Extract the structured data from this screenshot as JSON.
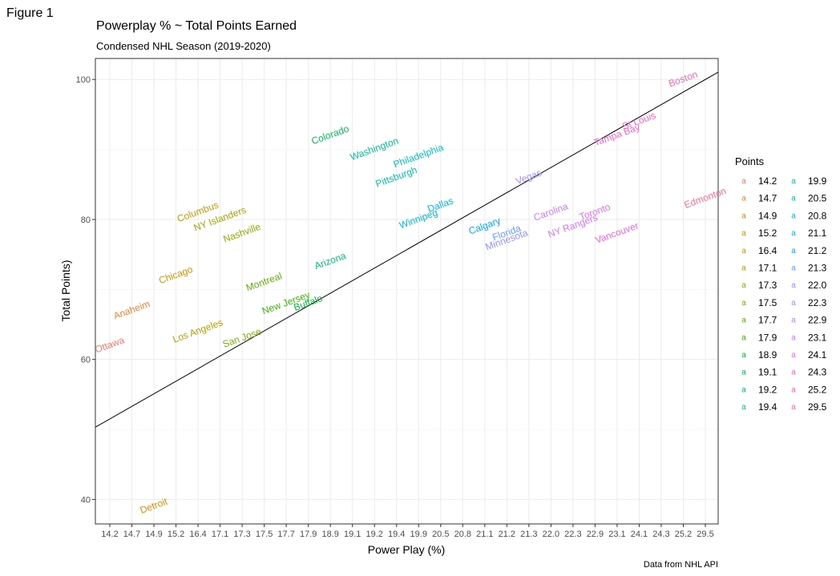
{
  "figure_label": "Figure 1",
  "caption": "Data from NHL API",
  "chart_data": {
    "type": "scatter",
    "title": "Powerplay % ~ Total Points Earned",
    "subtitle": "Condensed NHL Season (2019-2020)",
    "xlabel": "Power Play (%)",
    "ylabel": "Total Points)",
    "x_categories": [
      "14.2",
      "14.7",
      "14.9",
      "15.2",
      "16.4",
      "17.1",
      "17.3",
      "17.5",
      "17.7",
      "17.9",
      "18.9",
      "19.1",
      "19.2",
      "19.4",
      "19.9",
      "20.5",
      "20.8",
      "21.1",
      "21.2",
      "21.3",
      "22.0",
      "22.3",
      "22.9",
      "23.1",
      "24.1",
      "24.3",
      "25.2",
      "29.5"
    ],
    "y_ticks": [
      40,
      60,
      80,
      100
    ],
    "ylim": [
      36.5,
      103
    ],
    "grid": true,
    "legend": {
      "title": "Points",
      "position": "right",
      "key_glyph": "a"
    },
    "trend_line": {
      "y_at_first_category": 51.5,
      "y_at_last_category": 100
    },
    "points": [
      {
        "team": "Ottawa",
        "pp": "14.2",
        "pts": 62,
        "color": "#F8766D"
      },
      {
        "team": "Anaheim",
        "pp": "14.7",
        "pts": 67,
        "color": "#EB8335"
      },
      {
        "team": "Detroit",
        "pp": "14.9",
        "pts": 39,
        "color": "#DF8D00"
      },
      {
        "team": "Chicago",
        "pp": "15.2",
        "pts": 72,
        "color": "#D39200"
      },
      {
        "team": "Columbus",
        "pp": "16.4",
        "pts": 81,
        "color": "#C49A00"
      },
      {
        "team": "Los Angeles",
        "pp": "16.4",
        "pts": 64,
        "color": "#B79F00"
      },
      {
        "team": "NY Islanders",
        "pp": "17.1",
        "pts": 80,
        "color": "#A3A500"
      },
      {
        "team": "Nashville",
        "pp": "17.3",
        "pts": 78,
        "color": "#93AA00"
      },
      {
        "team": "San Jose",
        "pp": "17.3",
        "pts": 63,
        "color": "#7CAE00"
      },
      {
        "team": "Montreal",
        "pp": "17.5",
        "pts": 71,
        "color": "#5EB300"
      },
      {
        "team": "New Jersey",
        "pp": "17.7",
        "pts": 68,
        "color": "#39B600"
      },
      {
        "team": "Buffalo",
        "pp": "17.9",
        "pts": 68,
        "color": "#00BA38"
      },
      {
        "team": "Colorado",
        "pp": "18.9",
        "pts": 92,
        "color": "#00BC59"
      },
      {
        "team": "Arizona",
        "pp": "18.9",
        "pts": 74,
        "color": "#00BF7D"
      },
      {
        "team": "Washington",
        "pp": "19.2",
        "pts": 90,
        "color": "#00C19A"
      },
      {
        "team": "Pittsburgh",
        "pp": "19.4",
        "pts": 86,
        "color": "#00C0B8"
      },
      {
        "team": "Philadelphia",
        "pp": "19.9",
        "pts": 89,
        "color": "#00BFC4"
      },
      {
        "team": "Winnipeg",
        "pp": "19.9",
        "pts": 80,
        "color": "#00BCD8"
      },
      {
        "team": "Dallas",
        "pp": "20.5",
        "pts": 82,
        "color": "#00B6EB"
      },
      {
        "team": "Calgary",
        "pp": "21.1",
        "pts": 79,
        "color": "#00ABFD"
      },
      {
        "team": "Florida",
        "pp": "21.2",
        "pts": 78,
        "color": "#619CFF"
      },
      {
        "team": "Minnesota",
        "pp": "21.2",
        "pts": 77,
        "color": "#8F91FF"
      },
      {
        "team": "Vegas",
        "pp": "21.3",
        "pts": 86,
        "color": "#A58AFF"
      },
      {
        "team": "Carolina",
        "pp": "22.0",
        "pts": 81,
        "color": "#C77CFF"
      },
      {
        "team": "NY Rangers",
        "pp": "22.3",
        "pts": 79,
        "color": "#DB72FB"
      },
      {
        "team": "Toronto",
        "pp": "22.9",
        "pts": 81,
        "color": "#E76BF3"
      },
      {
        "team": "Vancouver",
        "pp": "23.1",
        "pts": 78,
        "color": "#F064E2"
      },
      {
        "team": "Tampa Bay",
        "pp": "23.1",
        "pts": 92,
        "color": "#FA62D3"
      },
      {
        "team": "St Louis",
        "pp": "24.1",
        "pts": 94,
        "color": "#FF61C3"
      },
      {
        "team": "Boston",
        "pp": "25.2",
        "pts": 100,
        "color": "#FF65AE"
      },
      {
        "team": "Edmonton",
        "pp": "29.5",
        "pts": 83,
        "color": "#FF6C91"
      }
    ],
    "legend_entries": [
      {
        "label": "14.2",
        "color": "#F8766D"
      },
      {
        "label": "14.7",
        "color": "#EB8335"
      },
      {
        "label": "14.9",
        "color": "#DF8D00"
      },
      {
        "label": "15.2",
        "color": "#D39200"
      },
      {
        "label": "16.4",
        "color": "#C49A00"
      },
      {
        "label": "17.1",
        "color": "#A3A500"
      },
      {
        "label": "17.3",
        "color": "#93AA00"
      },
      {
        "label": "17.5",
        "color": "#7CAE00"
      },
      {
        "label": "17.7",
        "color": "#5EB300"
      },
      {
        "label": "17.9",
        "color": "#39B600"
      },
      {
        "label": "18.9",
        "color": "#00BA38"
      },
      {
        "label": "19.1",
        "color": "#00BC59"
      },
      {
        "label": "19.2",
        "color": "#00BF7D"
      },
      {
        "label": "19.4",
        "color": "#00C19A"
      },
      {
        "label": "19.9",
        "color": "#00C0B8"
      },
      {
        "label": "20.5",
        "color": "#00BFC4"
      },
      {
        "label": "20.8",
        "color": "#00BCD8"
      },
      {
        "label": "21.1",
        "color": "#00B6EB"
      },
      {
        "label": "21.2",
        "color": "#00ABFD"
      },
      {
        "label": "21.3",
        "color": "#619CFF"
      },
      {
        "label": "22.0",
        "color": "#8F91FF"
      },
      {
        "label": "22.3",
        "color": "#A58AFF"
      },
      {
        "label": "22.9",
        "color": "#C77CFF"
      },
      {
        "label": "23.1",
        "color": "#DB72FB"
      },
      {
        "label": "24.1",
        "color": "#E76BF3"
      },
      {
        "label": "24.3",
        "color": "#FA62D3"
      },
      {
        "label": "25.2",
        "color": "#FF61C3"
      },
      {
        "label": "29.5",
        "color": "#FF65AE"
      }
    ]
  }
}
